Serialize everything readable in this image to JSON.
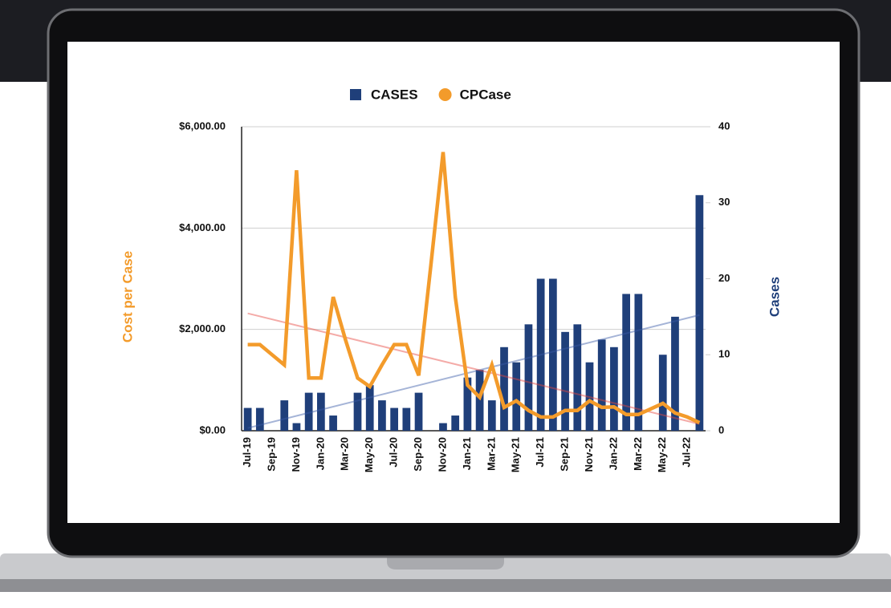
{
  "chart_data": {
    "type": "combo",
    "categories": [
      "Jul-19",
      null,
      "Sep-19",
      null,
      "Nov-19",
      null,
      "Jan-20",
      null,
      "Mar-20",
      null,
      "May-20",
      null,
      "Jul-20",
      null,
      "Sep-20",
      null,
      "Nov-20",
      null,
      "Jan-21",
      null,
      "Mar-21",
      null,
      "May-21",
      null,
      "Jul-21",
      null,
      "Sep-21",
      null,
      "Nov-21",
      null,
      "Jan-22",
      null,
      "Mar-22",
      null,
      "May-22",
      null,
      "Jul-22",
      null
    ],
    "series": [
      {
        "name": "CASES",
        "type": "bar",
        "color": "#1f3f7a",
        "axis": "y2",
        "values": [
          3,
          3,
          0,
          4,
          1,
          5,
          5,
          2,
          0,
          5,
          6,
          4,
          3,
          3,
          5,
          0,
          1,
          2,
          7,
          8,
          4,
          11,
          9,
          14,
          20,
          20,
          13,
          14,
          9,
          12,
          11,
          18,
          18,
          0,
          10,
          15,
          0,
          31
        ]
      },
      {
        "name": "CPCase",
        "type": "line",
        "color": "#f39b2b",
        "values": [
          1700,
          1700,
          1500,
          1300,
          5140,
          1040,
          1040,
          2640,
          1800,
          1040,
          870,
          1300,
          1700,
          1700,
          1090,
          3270,
          5500,
          2640,
          900,
          660,
          1300,
          460,
          590,
          400,
          270,
          270,
          400,
          400,
          590,
          460,
          470,
          320,
          320,
          430,
          540,
          350,
          270,
          160
        ]
      }
    ],
    "y_label": "Cost per Case",
    "y2_label": "Cases",
    "ylim": [
      0,
      6000
    ],
    "yticks": [
      {
        "value": 0,
        "label": "$0.00"
      },
      {
        "value": 2000,
        "label": "$2,000.00"
      },
      {
        "value": 4000,
        "label": "$4,000.00"
      },
      {
        "value": 6000,
        "label": "$6,000.00"
      }
    ],
    "y2lim": [
      0,
      40
    ],
    "y2ticks": [
      0,
      10,
      20,
      30,
      40
    ],
    "grid": true,
    "trendline": true,
    "legend": "top"
  }
}
